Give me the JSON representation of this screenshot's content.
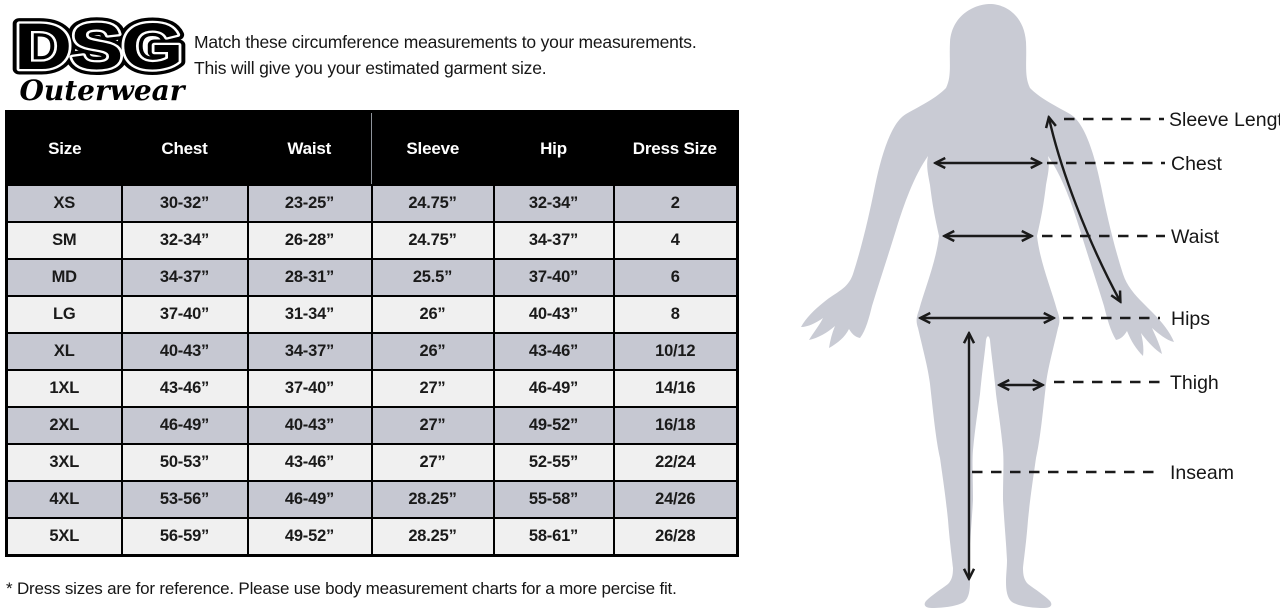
{
  "logo": {
    "brand": "DSG",
    "script": "Outerwear"
  },
  "intro": {
    "line1": "Match these circumference measurements to your measurements.",
    "line2": "This will give you your estimated garment size."
  },
  "table": {
    "headers": [
      "Size",
      "Chest",
      "Waist",
      "Sleeve",
      "Hip",
      "Dress Size"
    ],
    "rows": [
      [
        "XS",
        "30-32”",
        "23-25”",
        "24.75”",
        "32-34”",
        "2"
      ],
      [
        "SM",
        "32-34”",
        "26-28”",
        "24.75”",
        "34-37”",
        "4"
      ],
      [
        "MD",
        "34-37”",
        "28-31”",
        "25.5”",
        "37-40”",
        "6"
      ],
      [
        "LG",
        "37-40”",
        "31-34”",
        "26”",
        "40-43”",
        "8"
      ],
      [
        "XL",
        "40-43”",
        "34-37”",
        "26”",
        "43-46”",
        "10/12"
      ],
      [
        "1XL",
        "43-46”",
        "37-40”",
        "27”",
        "46-49”",
        "14/16"
      ],
      [
        "2XL",
        "46-49”",
        "40-43”",
        "27”",
        "49-52”",
        "16/18"
      ],
      [
        "3XL",
        "50-53”",
        "43-46”",
        "27”",
        "52-55”",
        "22/24"
      ],
      [
        "4XL",
        "53-56”",
        "46-49”",
        "28.25”",
        "55-58”",
        "24/26"
      ],
      [
        "5XL",
        "56-59”",
        "49-52”",
        "28.25”",
        "58-61”",
        "26/28"
      ]
    ]
  },
  "footnote": "* Dress sizes are for reference. Please use body measurement charts for a more percise fit.",
  "figure": {
    "labels": [
      "Sleeve Length",
      "Chest",
      "Waist",
      "Hips",
      "Thigh",
      "Inseam"
    ]
  },
  "colors": {
    "header_bg": "#000000",
    "header_text": "#ffffff",
    "row_alt": "#c6c8d2",
    "row_light": "#f0f0f0",
    "silhouette": "#c9cbd4",
    "ink": "#1a1a1a"
  }
}
